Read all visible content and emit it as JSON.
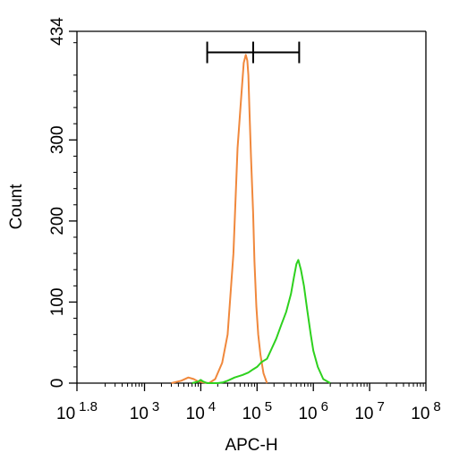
{
  "chart_data": {
    "type": "area",
    "title": "",
    "xlabel": "APC-H",
    "ylabel": "Count",
    "x_scale": "log",
    "xlim": [
      63,
      100000000
    ],
    "ylim": [
      0,
      434
    ],
    "y_ticks": [
      0,
      100,
      200,
      300,
      434
    ],
    "y_tick_labels": [
      "0",
      "100",
      "200",
      "300",
      "434"
    ],
    "x_ticks": [
      {
        "value": 63,
        "base": "10",
        "exp": "1.8"
      },
      {
        "value": 1000,
        "base": "10",
        "exp": "3"
      },
      {
        "value": 10000,
        "base": "10",
        "exp": "4"
      },
      {
        "value": 100000,
        "base": "10",
        "exp": "5"
      },
      {
        "value": 1000000,
        "base": "10",
        "exp": "6"
      },
      {
        "value": 10000000,
        "base": "10",
        "exp": "7"
      },
      {
        "value": 100000000,
        "base": "10",
        "exp": "8"
      }
    ],
    "gate": {
      "x_start": 13000,
      "x_end": 560000,
      "y": 408
    },
    "series": [
      {
        "color": "#f0883c",
        "x": [
          3000,
          4500,
          6000,
          7500,
          9000,
          11000,
          14000,
          18000,
          24000,
          30000,
          38000,
          45000,
          52000,
          58000,
          63000,
          67000,
          70000,
          73000,
          78000,
          85000,
          90000,
          97000,
          105000,
          115000,
          130000,
          150000
        ],
        "y": [
          0,
          3,
          7,
          5,
          2,
          1,
          0,
          5,
          25,
          60,
          160,
          290,
          350,
          395,
          405,
          398,
          380,
          340,
          280,
          210,
          150,
          95,
          60,
          35,
          12,
          0
        ]
      },
      {
        "color": "#2ed11e",
        "x": [
          7000,
          9000,
          10000,
          11000,
          13000,
          16000,
          20000,
          25000,
          30000,
          40000,
          55000,
          70000,
          85000,
          100000,
          120000,
          150000,
          180000,
          220000,
          270000,
          330000,
          400000,
          450000,
          500000,
          540000,
          600000,
          680000,
          780000,
          900000,
          1000000,
          1200000,
          1500000,
          2000000
        ],
        "y": [
          0,
          2,
          4,
          2,
          0,
          0,
          0,
          1,
          3,
          7,
          10,
          13,
          17,
          20,
          26,
          30,
          42,
          55,
          72,
          88,
          110,
          130,
          147,
          152,
          140,
          120,
          90,
          60,
          40,
          20,
          5,
          0
        ]
      }
    ]
  }
}
